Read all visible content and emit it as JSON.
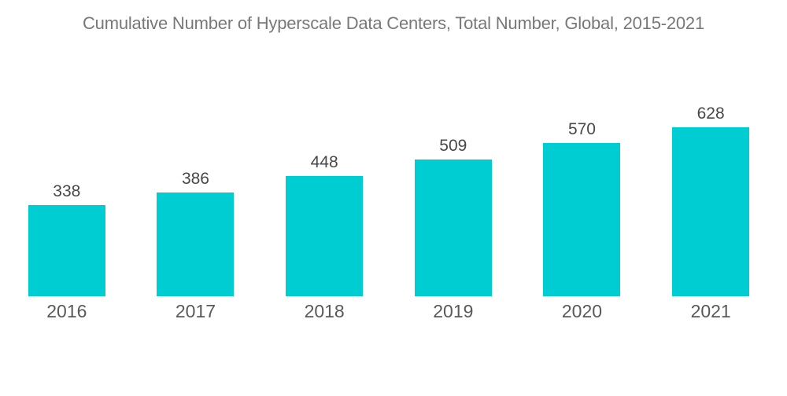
{
  "title": "Cumulative Number of Hyperscale Data Centers, Total Number, Global, 2015-2021",
  "colors": {
    "background": "#ffffff",
    "bar": "#00cdd1",
    "title_text": "#77787b",
    "value_text": "#47484a",
    "year_text": "#58595c"
  },
  "chart_data": {
    "type": "bar",
    "title": "Cumulative Number of Hyperscale Data Centers, Total Number, Global, 2015-2021",
    "categories": [
      "2016",
      "2017",
      "2018",
      "2019",
      "2020",
      "2021"
    ],
    "series": [
      {
        "name": "Cumulative number of hyperscale data centers",
        "values": [
          338,
          386,
          448,
          509,
          570,
          628
        ]
      }
    ],
    "xlabel": "",
    "ylabel": "",
    "baseline": 0,
    "grid": false,
    "axes_shown": false,
    "legend_position": "none",
    "value_labels_shown": true,
    "bar_color": "#00cdd1"
  }
}
